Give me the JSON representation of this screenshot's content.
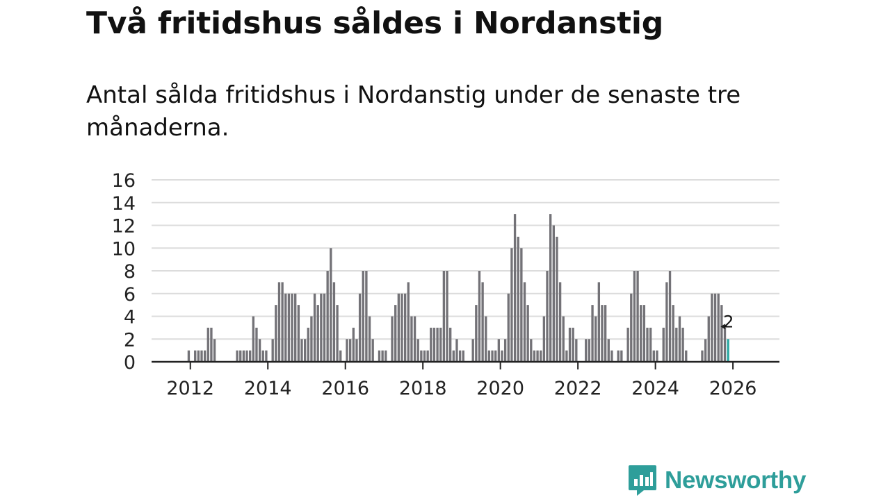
{
  "title": "Två fritidshus såldes i Nordanstig",
  "subtitle": "Antal sålda fritidshus i Nordanstig under de senaste tre månaderna.",
  "brand": {
    "name": "Newsworthy",
    "icon": "newsworthy-logo-icon",
    "color": "#2e9e9a"
  },
  "colors": {
    "bar": "#737277",
    "highlight": "#2ba8a2",
    "grid": "#dcdcdc",
    "axis": "#222222",
    "text": "#222222"
  },
  "chart_data": {
    "type": "bar",
    "title": "Två fritidshus såldes i Nordanstig",
    "xlabel": "",
    "ylabel": "",
    "x_range": [
      2011.0,
      2027.2
    ],
    "ylim": [
      0,
      16
    ],
    "yticks": [
      "0",
      "2",
      "4",
      "6",
      "8",
      "10",
      "12",
      "14",
      "16"
    ],
    "xticks": [
      "2012",
      "2014",
      "2016",
      "2018",
      "2020",
      "2022",
      "2024",
      "2026"
    ],
    "grid": true,
    "start": "2011-12",
    "values": [
      1,
      0,
      1,
      1,
      1,
      1,
      3,
      3,
      2,
      0,
      0,
      0,
      0,
      0,
      0,
      1,
      1,
      1,
      1,
      1,
      4,
      3,
      2,
      1,
      1,
      0,
      2,
      5,
      7,
      7,
      6,
      6,
      6,
      6,
      5,
      2,
      2,
      3,
      4,
      6,
      5,
      6,
      6,
      8,
      10,
      7,
      5,
      1,
      0,
      2,
      2,
      3,
      2,
      6,
      8,
      8,
      4,
      2,
      0,
      1,
      1,
      1,
      0,
      4,
      5,
      6,
      6,
      6,
      7,
      4,
      4,
      2,
      1,
      1,
      1,
      3,
      3,
      3,
      3,
      8,
      8,
      3,
      1,
      2,
      1,
      1,
      0,
      0,
      2,
      5,
      8,
      7,
      4,
      1,
      1,
      1,
      2,
      1,
      2,
      6,
      10,
      13,
      11,
      10,
      7,
      5,
      2,
      1,
      1,
      1,
      4,
      8,
      13,
      12,
      11,
      7,
      4,
      1,
      3,
      3,
      2,
      0,
      0,
      2,
      2,
      5,
      4,
      7,
      5,
      5,
      2,
      1,
      0,
      1,
      1,
      0,
      3,
      6,
      8,
      8,
      5,
      5,
      3,
      3,
      1,
      1,
      0,
      3,
      7,
      8,
      5,
      3,
      4,
      3,
      1,
      0,
      0,
      0,
      0,
      1,
      2,
      4,
      6,
      6,
      6,
      5,
      3,
      2
    ],
    "highlight_last": true,
    "annotation": {
      "label": "2",
      "value": 2
    }
  }
}
